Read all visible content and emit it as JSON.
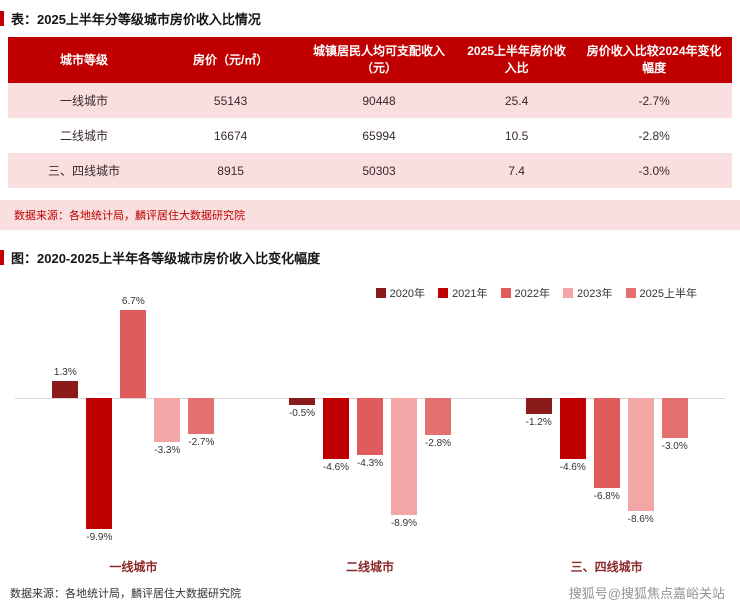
{
  "table_section": {
    "title": "表：2025上半年分等级城市房价收入比情况",
    "table": {
      "headers": [
        "城市等级",
        "房价（元/㎡）",
        "城镇居民人均可支配收入（元）",
        "2025上半年房价收入比",
        "房价收入比较2024年变化幅度"
      ],
      "rows": [
        [
          "一线城市",
          "55143",
          "90448",
          "25.4",
          "-2.7%"
        ],
        [
          "二线城市",
          "16674",
          "65994",
          "10.5",
          "-2.8%"
        ],
        [
          "三、四线城市",
          "8915",
          "50303",
          "7.4",
          "-3.0%"
        ]
      ]
    },
    "source": "数据来源：各地统计局，麟评居住大数据研究院"
  },
  "chart_section": {
    "title": "图：2020-2025上半年各等级城市房价收入比变化幅度",
    "source": "数据来源：各地统计局，麟评居住大数据研究院"
  },
  "watermark": "搜狐号@搜狐焦点嘉峪关站",
  "colors": {
    "brand_red": "#C00000",
    "row_pink": "#F9DFDF"
  },
  "chart_data": {
    "type": "bar",
    "title": "2020-2025上半年各等级城市房价收入比变化幅度",
    "categories": [
      "一线城市",
      "二线城市",
      "三、四线城市"
    ],
    "series": [
      {
        "name": "2020年",
        "color": "#8B1A1A",
        "values": [
          1.3,
          -0.5,
          -1.2
        ]
      },
      {
        "name": "2021年",
        "color": "#C00000",
        "values": [
          -9.9,
          -4.6,
          -4.6
        ]
      },
      {
        "name": "2022年",
        "color": "#E05C5C",
        "values": [
          6.7,
          -4.3,
          -6.8
        ]
      },
      {
        "name": "2023年",
        "color": "#F2A6A6",
        "values": [
          -3.3,
          -8.9,
          -8.6
        ]
      },
      {
        "name": "2025上半年",
        "color": "#E57070",
        "values": [
          -2.7,
          -2.8,
          -3.0
        ]
      }
    ],
    "value_suffix": "%",
    "ylim": [
      -11,
      8
    ],
    "baseline": 0,
    "grid": false,
    "legend_position": "top-right",
    "xlabel": "",
    "ylabel": ""
  }
}
